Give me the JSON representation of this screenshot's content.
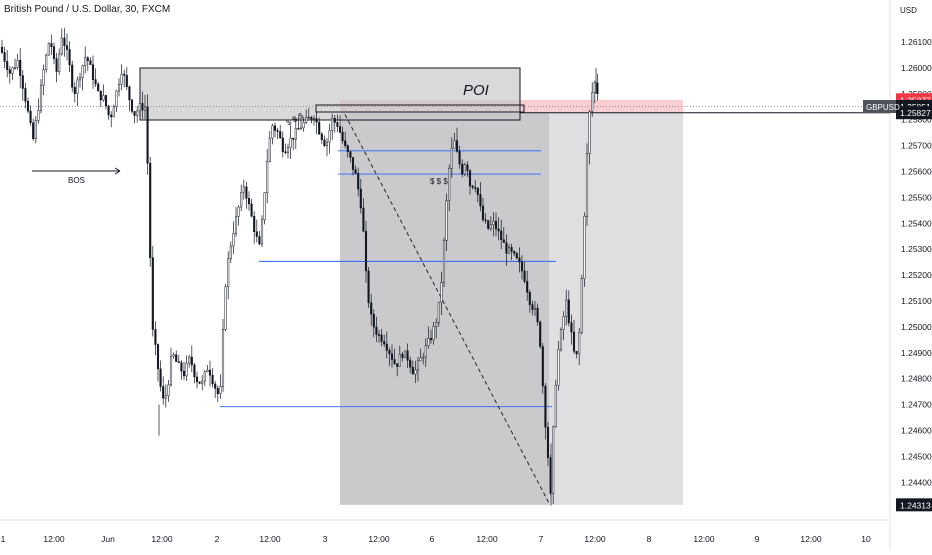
{
  "header": {
    "title": "British Pound / U.S. Dollar, 30, FXCM"
  },
  "chart_data": {
    "type": "candlestick",
    "symbol": "GBPUSD",
    "currency": "USD",
    "timeframe": "30",
    "source": "FXCM",
    "y_range": [
      1.2425,
      1.2618
    ],
    "y_ticks": [
      "1.26100",
      "1.26000",
      "1.25900",
      "1.25800",
      "1.25700",
      "1.25600",
      "1.25500",
      "1.25400",
      "1.25300",
      "1.25200",
      "1.25100",
      "1.25000",
      "1.24900",
      "1.24800",
      "1.24700",
      "1.24600",
      "1.24500",
      "1.24400"
    ],
    "x_ticks": [
      "1",
      "12:00",
      "Jun",
      "12:00",
      "2",
      "12:00",
      "3",
      "12:00",
      "6",
      "12:00",
      "7",
      "12:00",
      "8",
      "12:00",
      "9",
      "12:00",
      "10"
    ],
    "price_labels": {
      "sl": "1.25877",
      "last": "1.25851",
      "entry": "1.25827",
      "target": "1.24313",
      "symbol": "GBPUSD"
    },
    "annotations": {
      "poi": "POI",
      "bos": "BOS",
      "liquidity_marks": [
        "$ $ $",
        "$ $ $"
      ]
    },
    "close_path": [
      [
        0,
        1.2608
      ],
      [
        10,
        1.2598
      ],
      [
        18,
        1.2603
      ],
      [
        26,
        1.2587
      ],
      [
        33,
        1.2572
      ],
      [
        38,
        1.2584
      ],
      [
        44,
        1.26
      ],
      [
        50,
        1.2612
      ],
      [
        56,
        1.2597
      ],
      [
        62,
        1.2613
      ],
      [
        68,
        1.2604
      ],
      [
        74,
        1.259
      ],
      [
        80,
        1.2598
      ],
      [
        86,
        1.2605
      ],
      [
        92,
        1.2598
      ],
      [
        98,
        1.259
      ],
      [
        104,
        1.2588
      ],
      [
        110,
        1.258
      ],
      [
        116,
        1.259
      ],
      [
        122,
        1.26
      ],
      [
        128,
        1.259
      ],
      [
        134,
        1.2582
      ],
      [
        140,
        1.2585
      ],
      [
        145,
        1.2585
      ],
      [
        148,
        1.256
      ],
      [
        152,
        1.25
      ],
      [
        156,
        1.249
      ],
      [
        160,
        1.2478
      ],
      [
        164,
        1.247
      ],
      [
        168,
        1.2478
      ],
      [
        172,
        1.249
      ],
      [
        178,
        1.2485
      ],
      [
        184,
        1.2482
      ],
      [
        190,
        1.2488
      ],
      [
        196,
        1.248
      ],
      [
        202,
        1.2478
      ],
      [
        208,
        1.2485
      ],
      [
        214,
        1.2478
      ],
      [
        220,
        1.2472
      ],
      [
        222,
        1.249
      ],
      [
        226,
        1.252
      ],
      [
        232,
        1.2535
      ],
      [
        238,
        1.2545
      ],
      [
        244,
        1.2555
      ],
      [
        250,
        1.2545
      ],
      [
        256,
        1.2535
      ],
      [
        260,
        1.253
      ],
      [
        264,
        1.255
      ],
      [
        268,
        1.2568
      ],
      [
        272,
        1.2578
      ],
      [
        278,
        1.2575
      ],
      [
        284,
        1.2568
      ],
      [
        290,
        1.2572
      ],
      [
        296,
        1.2575
      ],
      [
        302,
        1.2578
      ],
      [
        308,
        1.258
      ],
      [
        314,
        1.2582
      ],
      [
        320,
        1.2575
      ],
      [
        326,
        1.257
      ],
      [
        332,
        1.258
      ],
      [
        338,
        1.2578
      ],
      [
        344,
        1.257
      ],
      [
        350,
        1.2565
      ],
      [
        356,
        1.2558
      ],
      [
        362,
        1.2545
      ],
      [
        366,
        1.252
      ],
      [
        370,
        1.2505
      ],
      [
        374,
        1.25
      ],
      [
        378,
        1.2497
      ],
      [
        384,
        1.2495
      ],
      [
        390,
        1.249
      ],
      [
        396,
        1.2485
      ],
      [
        402,
        1.249
      ],
      [
        408,
        1.2488
      ],
      [
        414,
        1.2482
      ],
      [
        420,
        1.2487
      ],
      [
        426,
        1.2492
      ],
      [
        432,
        1.2497
      ],
      [
        438,
        1.2505
      ],
      [
        442,
        1.252
      ],
      [
        446,
        1.2545
      ],
      [
        450,
        1.2565
      ],
      [
        454,
        1.2572
      ],
      [
        458,
        1.2565
      ],
      [
        462,
        1.256
      ],
      [
        466,
        1.2565
      ],
      [
        470,
        1.2555
      ],
      [
        476,
        1.2555
      ],
      [
        482,
        1.2542
      ],
      [
        488,
        1.2538
      ],
      [
        494,
        1.254
      ],
      [
        500,
        1.2535
      ],
      [
        506,
        1.253
      ],
      [
        512,
        1.2528
      ],
      [
        518,
        1.2525
      ],
      [
        524,
        1.252
      ],
      [
        530,
        1.251
      ],
      [
        536,
        1.2505
      ],
      [
        540,
        1.2495
      ],
      [
        544,
        1.247
      ],
      [
        548,
        1.245
      ],
      [
        551,
        1.2432
      ],
      [
        554,
        1.247
      ],
      [
        558,
        1.249
      ],
      [
        562,
        1.25
      ],
      [
        566,
        1.251
      ],
      [
        570,
        1.25
      ],
      [
        574,
        1.249
      ],
      [
        578,
        1.2488
      ],
      [
        582,
        1.252
      ],
      [
        586,
        1.256
      ],
      [
        590,
        1.2585
      ],
      [
        594,
        1.2595
      ],
      [
        598,
        1.259
      ]
    ]
  }
}
